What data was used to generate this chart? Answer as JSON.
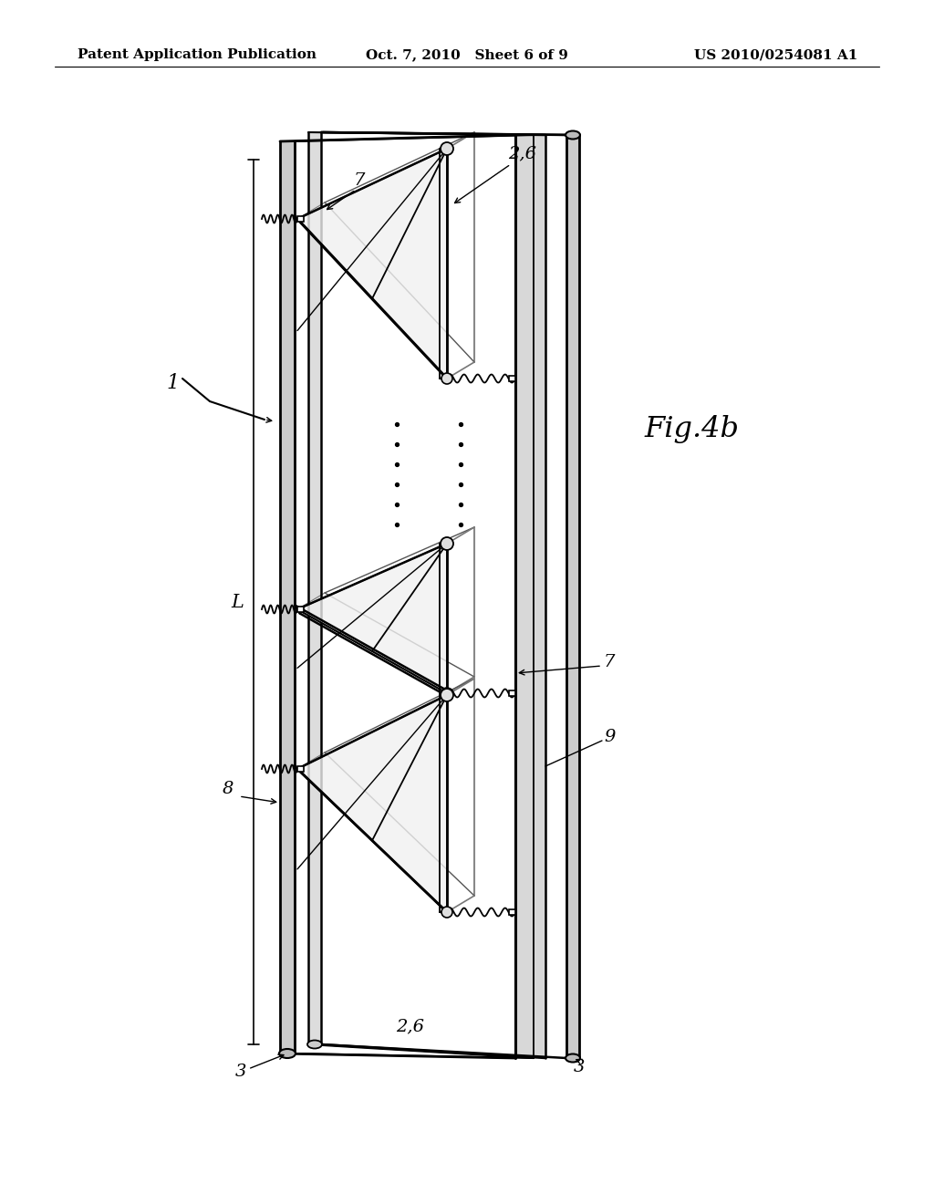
{
  "bg_color": "#ffffff",
  "header_left": "Patent Application Publication",
  "header_center": "Oct. 7, 2010   Sheet 6 of 9",
  "header_right": "US 2010/0254081 A1",
  "header_fontsize": 11,
  "fig_label": "Fig.4b",
  "line_color": "#000000"
}
